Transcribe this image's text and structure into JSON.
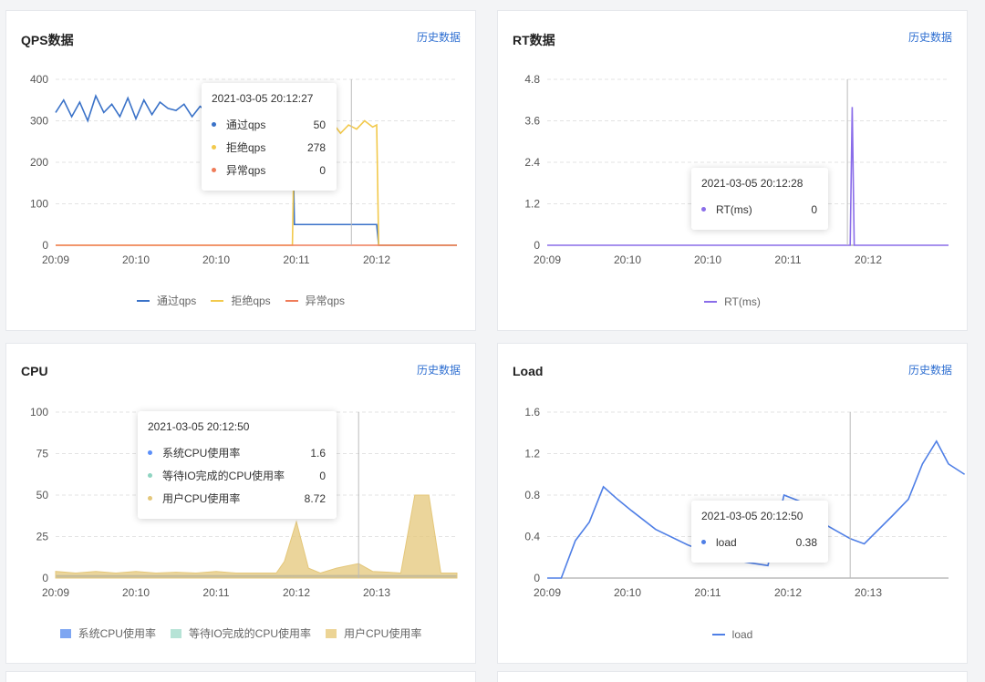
{
  "history_label": "历史数据",
  "colors": {
    "pass": "#3a72c8",
    "block": "#f2c94c",
    "exception": "#ef7c59",
    "rt": "#8a6de9",
    "cpu_sys": "#5b8ff9",
    "cpu_io": "#8fd4c1",
    "cpu_user": "#e4c77a",
    "load": "#4f7fe6"
  },
  "cards": [
    {
      "id": "qps",
      "title": "QPS数据",
      "tooltip": {
        "time": "2021-03-05 20:12:27",
        "rows": [
          {
            "name": "通过qps",
            "value": "50",
            "color": "#3a72c8"
          },
          {
            "name": "拒绝qps",
            "value": "278",
            "color": "#f2c94c"
          },
          {
            "name": "异常qps",
            "value": "0",
            "color": "#ef7c59"
          }
        ]
      },
      "legend": [
        {
          "name": "通过qps",
          "color": "#3a72c8",
          "shape": "line"
        },
        {
          "name": "拒绝qps",
          "color": "#f2c94c",
          "shape": "line"
        },
        {
          "name": "异常qps",
          "color": "#ef7c59",
          "shape": "line"
        }
      ]
    },
    {
      "id": "rt",
      "title": "RT数据",
      "tooltip": {
        "time": "2021-03-05 20:12:28",
        "rows": [
          {
            "name": "RT(ms)",
            "value": "0",
            "color": "#8a6de9"
          }
        ]
      },
      "legend": [
        {
          "name": "RT(ms)",
          "color": "#8a6de9",
          "shape": "line"
        }
      ]
    },
    {
      "id": "cpu",
      "title": "CPU",
      "tooltip": {
        "time": "2021-03-05 20:12:50",
        "rows": [
          {
            "name": "系统CPU使用率",
            "value": "1.6",
            "color": "#5b8ff9"
          },
          {
            "name": "等待IO完成的CPU使用率",
            "value": "0",
            "color": "#8fd4c1"
          },
          {
            "name": "用户CPU使用率",
            "value": "8.72",
            "color": "#e4c77a"
          }
        ]
      },
      "legend": [
        {
          "name": "系统CPU使用率",
          "color": "#5b8ff9",
          "shape": "box"
        },
        {
          "name": "等待IO完成的CPU使用率",
          "color": "#b6e3d6",
          "shape": "box"
        },
        {
          "name": "用户CPU使用率",
          "color": "#ecd495",
          "shape": "box"
        }
      ]
    },
    {
      "id": "load",
      "title": "Load",
      "tooltip": {
        "time": "2021-03-05 20:12:50",
        "rows": [
          {
            "name": "load",
            "value": "0.38",
            "color": "#4f7fe6"
          }
        ]
      },
      "legend": [
        {
          "name": "load",
          "color": "#4f7fe6",
          "shape": "line"
        }
      ]
    }
  ],
  "chart_data": [
    {
      "id": "qps",
      "type": "line",
      "xticks": [
        "20:09",
        "20:10",
        "20:10",
        "20:11",
        "20:12"
      ],
      "ylim": [
        0,
        400
      ],
      "yticks": [
        0,
        100,
        200,
        300,
        400
      ],
      "grid": true,
      "legend": "bottom",
      "crosshair_x": 0.737,
      "series": [
        {
          "name": "通过qps",
          "color": "#3a72c8",
          "points": [
            [
              0,
              320
            ],
            [
              0.02,
              350
            ],
            [
              0.04,
              310
            ],
            [
              0.06,
              345
            ],
            [
              0.08,
              300
            ],
            [
              0.1,
              360
            ],
            [
              0.12,
              320
            ],
            [
              0.14,
              340
            ],
            [
              0.16,
              310
            ],
            [
              0.18,
              355
            ],
            [
              0.2,
              305
            ],
            [
              0.22,
              350
            ],
            [
              0.24,
              315
            ],
            [
              0.26,
              345
            ],
            [
              0.28,
              330
            ],
            [
              0.3,
              325
            ],
            [
              0.32,
              340
            ],
            [
              0.34,
              310
            ],
            [
              0.36,
              335
            ],
            [
              0.38,
              320
            ],
            [
              0.4,
              330
            ],
            [
              0.42,
              315
            ],
            [
              0.44,
              340
            ],
            [
              0.46,
              320
            ],
            [
              0.48,
              335
            ],
            [
              0.5,
              325
            ],
            [
              0.52,
              330
            ],
            [
              0.54,
              320
            ],
            [
              0.56,
              335
            ],
            [
              0.58,
              330
            ],
            [
              0.59,
              330
            ],
            [
              0.595,
              50
            ],
            [
              0.62,
              50
            ],
            [
              0.66,
              50
            ],
            [
              0.7,
              50
            ],
            [
              0.74,
              50
            ],
            [
              0.78,
              50
            ],
            [
              0.8,
              50
            ],
            [
              0.805,
              0
            ],
            [
              0.85,
              0
            ],
            [
              0.9,
              0
            ],
            [
              1.0,
              0
            ]
          ]
        },
        {
          "name": "拒绝qps",
          "color": "#f2c94c",
          "points": [
            [
              0,
              0
            ],
            [
              0.58,
              0
            ],
            [
              0.59,
              0
            ],
            [
              0.595,
              280
            ],
            [
              0.61,
              295
            ],
            [
              0.63,
              275
            ],
            [
              0.65,
              300
            ],
            [
              0.67,
              280
            ],
            [
              0.69,
              295
            ],
            [
              0.71,
              270
            ],
            [
              0.73,
              290
            ],
            [
              0.75,
              280
            ],
            [
              0.77,
              300
            ],
            [
              0.79,
              285
            ],
            [
              0.8,
              290
            ],
            [
              0.805,
              0
            ],
            [
              0.85,
              0
            ],
            [
              1.0,
              0
            ]
          ]
        },
        {
          "name": "异常qps",
          "color": "#ef7c59",
          "points": [
            [
              0,
              0
            ],
            [
              1.0,
              0
            ]
          ]
        }
      ]
    },
    {
      "id": "rt",
      "type": "line",
      "xticks": [
        "20:09",
        "20:10",
        "20:10",
        "20:11",
        "20:12"
      ],
      "ylim": [
        0,
        4.8
      ],
      "yticks": [
        0,
        1.2,
        2.4,
        3.6,
        4.8
      ],
      "grid": true,
      "legend": "bottom",
      "crosshair_x": 0.748,
      "series": [
        {
          "name": "RT(ms)",
          "color": "#8a6de9",
          "points": [
            [
              0,
              0
            ],
            [
              0.755,
              0
            ],
            [
              0.76,
              4.0
            ],
            [
              0.765,
              0
            ],
            [
              1.0,
              0
            ]
          ]
        }
      ]
    },
    {
      "id": "cpu",
      "type": "area",
      "xticks": [
        "20:09",
        "20:10",
        "20:11",
        "20:12",
        "20:13"
      ],
      "ylim": [
        0,
        100
      ],
      "yticks": [
        0,
        25,
        50,
        75,
        100
      ],
      "grid": true,
      "legend": "bottom",
      "crosshair_x": 0.755,
      "series": [
        {
          "name": "系统CPU使用率",
          "color": "#5b8ff9",
          "points": [
            [
              0,
              1.5
            ],
            [
              0.2,
              1.5
            ],
            [
              0.5,
              1.5
            ],
            [
              0.755,
              1.6
            ],
            [
              1.0,
              1.5
            ]
          ]
        },
        {
          "name": "等待IO完成的CPU使用率",
          "color": "#8fd4c1",
          "points": [
            [
              0,
              0
            ],
            [
              1.0,
              0
            ]
          ]
        },
        {
          "name": "用户CPU使用率",
          "color": "#e4c77a",
          "points": [
            [
              0,
              4
            ],
            [
              0.05,
              3
            ],
            [
              0.1,
              4
            ],
            [
              0.15,
              3
            ],
            [
              0.2,
              4
            ],
            [
              0.25,
              3
            ],
            [
              0.3,
              3.5
            ],
            [
              0.35,
              3
            ],
            [
              0.4,
              4
            ],
            [
              0.45,
              3
            ],
            [
              0.5,
              3
            ],
            [
              0.55,
              3
            ],
            [
              0.57,
              10
            ],
            [
              0.6,
              34
            ],
            [
              0.63,
              6
            ],
            [
              0.66,
              3
            ],
            [
              0.7,
              6
            ],
            [
              0.755,
              8.72
            ],
            [
              0.79,
              4
            ],
            [
              0.83,
              3.5
            ],
            [
              0.86,
              3
            ],
            [
              0.895,
              50
            ],
            [
              0.93,
              50
            ],
            [
              0.96,
              3
            ],
            [
              1.0,
              3
            ]
          ]
        }
      ]
    },
    {
      "id": "load",
      "type": "line",
      "xticks": [
        "20:09",
        "20:10",
        "20:11",
        "20:12",
        "20:13"
      ],
      "ylim": [
        0,
        1.6
      ],
      "yticks": [
        0,
        0.4,
        0.8,
        1.2,
        1.6
      ],
      "grid": true,
      "legend": "bottom",
      "crosshair_x": 0.755,
      "series": [
        {
          "name": "load",
          "color": "#4f7fe6",
          "points": [
            [
              0,
              0
            ],
            [
              0.035,
              0
            ],
            [
              0.07,
              0.36
            ],
            [
              0.105,
              0.54
            ],
            [
              0.14,
              0.88
            ],
            [
              0.175,
              0.76
            ],
            [
              0.21,
              0.65
            ],
            [
              0.27,
              0.47
            ],
            [
              0.35,
              0.32
            ],
            [
              0.43,
              0.2
            ],
            [
              0.5,
              0.15
            ],
            [
              0.55,
              0.12
            ],
            [
              0.59,
              0.8
            ],
            [
              0.63,
              0.74
            ],
            [
              0.7,
              0.5
            ],
            [
              0.755,
              0.38
            ],
            [
              0.79,
              0.33
            ],
            [
              0.86,
              0.6
            ],
            [
              0.9,
              0.76
            ],
            [
              0.935,
              1.1
            ],
            [
              0.97,
              1.32
            ],
            [
              1.0,
              1.1
            ],
            [
              1.04,
              1.0
            ]
          ]
        }
      ]
    }
  ]
}
